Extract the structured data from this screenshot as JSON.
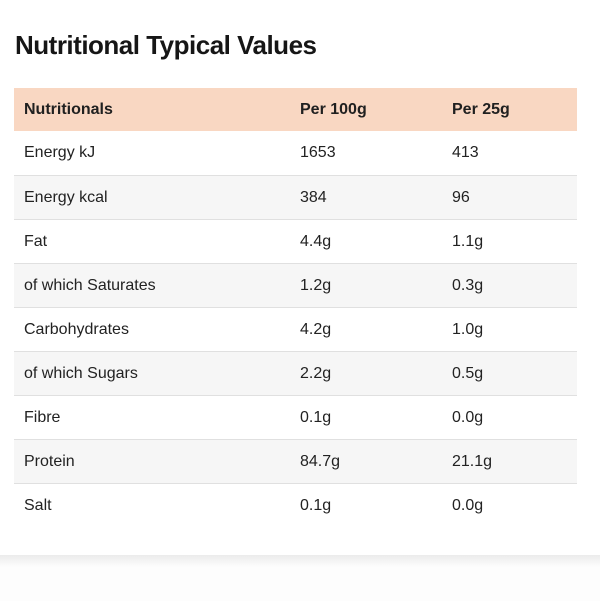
{
  "page": {
    "title": "Nutritional Typical Values"
  },
  "colors": {
    "header_bg": "#f9d7c2",
    "row_alt_bg": "#f6f6f6",
    "row_border": "#e0e0e0",
    "text": "#1f1f1f"
  },
  "table": {
    "headers": {
      "col1": "Nutritionals",
      "col2": "Per 100g",
      "col3": "Per 25g"
    },
    "rows": [
      {
        "label": "Energy kJ",
        "per100g": "1653",
        "per25g": "413"
      },
      {
        "label": "Energy kcal",
        "per100g": "384",
        "per25g": "96"
      },
      {
        "label": "Fat",
        "per100g": "4.4g",
        "per25g": "1.1g"
      },
      {
        "label": "of which Saturates",
        "per100g": "1.2g",
        "per25g": "0.3g"
      },
      {
        "label": "Carbohydrates",
        "per100g": "4.2g",
        "per25g": "1.0g"
      },
      {
        "label": "of which Sugars",
        "per100g": "2.2g",
        "per25g": "0.5g"
      },
      {
        "label": "Fibre",
        "per100g": "0.1g",
        "per25g": "0.0g"
      },
      {
        "label": "Protein",
        "per100g": "84.7g",
        "per25g": "21.1g"
      },
      {
        "label": "Salt",
        "per100g": "0.1g",
        "per25g": "0.0g"
      }
    ]
  }
}
